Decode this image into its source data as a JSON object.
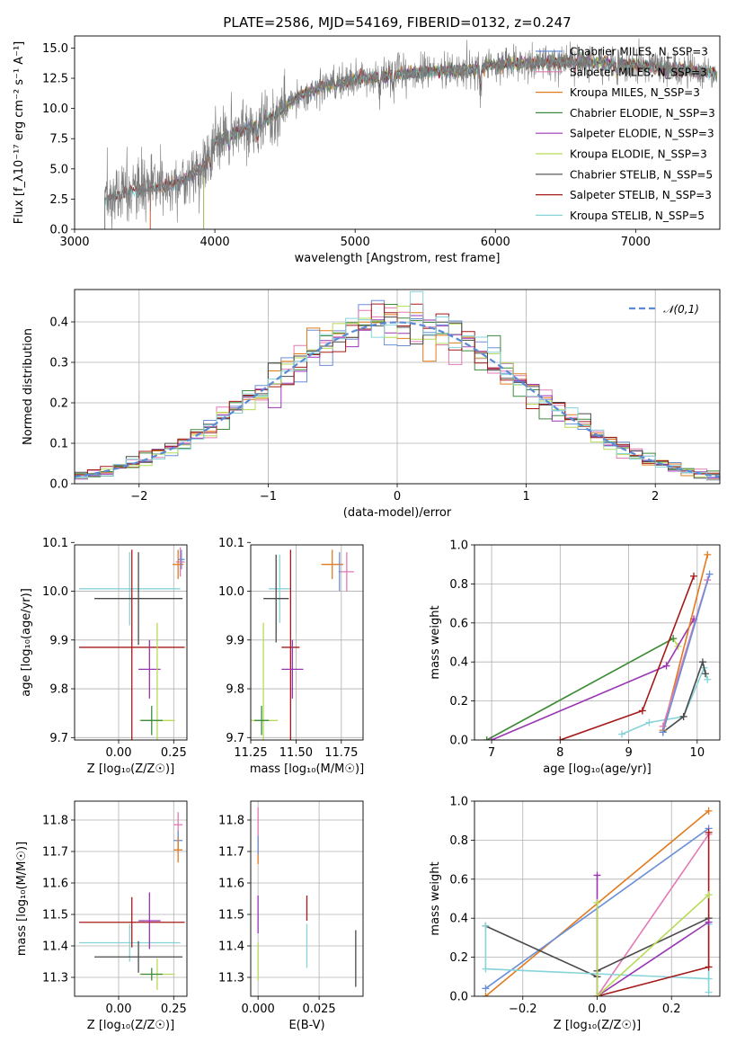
{
  "colors": {
    "Chabrier MILES": "#6b8fd6",
    "Salpeter MILES": "#e27ab5",
    "Kroupa MILES": "#e07b1f",
    "Chabrier ELODIE": "#3e8a3e",
    "Salpeter ELODIE": "#9a35b4",
    "Kroupa ELODIE": "#b7db55",
    "Chabrier STELIB": "#4a4a4a",
    "Salpeter STELIB": "#a51a1a",
    "Kroupa STELIB": "#86d3d8",
    "gauss": "#5b8ad6"
  },
  "chart_data": [
    {
      "id": "spectrum",
      "type": "line",
      "title": "PLATE=2586, MJD=54169, FIBERID=0132, z=0.247",
      "xlabel": "wavelength [Angstrom, rest frame]",
      "ylabel": "Flux [f_λ10⁻¹⁷ erg cm⁻² s⁻¹ A⁻¹]",
      "xlim": [
        3000,
        7600
      ],
      "ylim": [
        0,
        16
      ],
      "xticks": [
        3000,
        4000,
        5000,
        6000,
        7000
      ],
      "yticks": [
        0.0,
        2.5,
        5.0,
        7.5,
        10.0,
        12.5,
        15.0
      ],
      "legend_position": "top-right",
      "grid": false,
      "data_range": [
        3215,
        7580
      ],
      "continuum": [
        [
          3215,
          2.5
        ],
        [
          3300,
          2.9
        ],
        [
          3500,
          3.3
        ],
        [
          3700,
          3.7
        ],
        [
          3800,
          4.2
        ],
        [
          3900,
          5.0
        ],
        [
          4000,
          7.2
        ],
        [
          4200,
          8.2
        ],
        [
          4400,
          9.2
        ],
        [
          4600,
          11.0
        ],
        [
          4800,
          12.0
        ],
        [
          5000,
          12.4
        ],
        [
          5200,
          12.7
        ],
        [
          5500,
          13.0
        ],
        [
          5800,
          13.2
        ],
        [
          6000,
          13.6
        ],
        [
          6300,
          13.8
        ],
        [
          6600,
          13.9
        ],
        [
          7000,
          13.6
        ],
        [
          7300,
          13.2
        ],
        [
          7580,
          12.9
        ]
      ],
      "absorption_lines": [
        [
          3934,
          1.5
        ],
        [
          3969,
          1.4
        ],
        [
          4102,
          0.8
        ],
        [
          4304,
          1.3
        ],
        [
          4340,
          0.8
        ],
        [
          4861,
          0.7
        ],
        [
          5175,
          1.6
        ],
        [
          5270,
          1.0
        ],
        [
          5892,
          1.8
        ],
        [
          6563,
          0.6
        ],
        [
          6867,
          1.0
        ]
      ],
      "series": [
        {
          "name": "Chabrier MILES",
          "legend": "N_SSP=3",
          "start": 3540
        },
        {
          "name": "Salpeter MILES",
          "legend": "N_SSP=3",
          "start": 3540
        },
        {
          "name": "Kroupa MILES",
          "legend": "N_SSP=3",
          "start": 3540
        },
        {
          "name": "Chabrier ELODIE",
          "legend": "N_SSP=3",
          "start": 3920
        },
        {
          "name": "Salpeter ELODIE",
          "legend": "N_SSP=3",
          "start": 3920
        },
        {
          "name": "Kroupa ELODIE",
          "legend": "N_SSP=3",
          "start": 3920
        },
        {
          "name": "Chabrier STELIB",
          "legend": "N_SSP=5",
          "start": 3215
        },
        {
          "name": "Salpeter STELIB",
          "legend": "N_SSP=3",
          "start": 3215
        },
        {
          "name": "Kroupa STELIB",
          "legend": "N_SSP=5",
          "start": 3215
        }
      ]
    },
    {
      "id": "residuals",
      "type": "histogram",
      "xlabel": "(data-model)/error",
      "ylabel": "Normed distribution",
      "xlim": [
        -2.5,
        2.5
      ],
      "ylim": [
        0,
        0.48
      ],
      "xticks": [
        -2,
        -1,
        0,
        1,
        2
      ],
      "yticks": [
        0.0,
        0.1,
        0.2,
        0.3,
        0.4
      ],
      "grid": true,
      "bin_width": 0.1,
      "legend": {
        "label": "𝒩(0,1)",
        "position": "top-right"
      },
      "gaussian": {
        "mean": 0,
        "sigma": 1
      }
    },
    {
      "id": "age_vs_Z",
      "type": "errorbar",
      "xlabel": "Z [log₁₀(Z/Z☉)]",
      "ylabel": "age [log₁₀(age/yr)]",
      "xlim": [
        -0.2,
        0.31
      ],
      "ylim": [
        9.695,
        10.095
      ],
      "xticks": [
        0.0,
        0.25
      ],
      "xticklabels": [
        "0.00",
        "0.25"
      ],
      "yticks": [
        9.7,
        9.8,
        9.9,
        10.0,
        10.1
      ],
      "grid": true,
      "points": [
        {
          "s": "Kroupa STELIB",
          "x": 0.05,
          "xerr": 0.23,
          "y": 10.005,
          "yerr": 0.075
        },
        {
          "s": "Chabrier STELIB",
          "x": 0.09,
          "xerr": 0.2,
          "y": 9.985,
          "yerr": 0.095
        },
        {
          "s": "Salpeter STELIB",
          "x": 0.06,
          "xerr": 0.24,
          "y": 9.885,
          "yerr": 0.2
        },
        {
          "s": "Salpeter ELODIE",
          "x": 0.14,
          "xerr": 0.05,
          "y": 9.84,
          "yerr": 0.06
        },
        {
          "s": "Kroupa ELODIE",
          "x": 0.175,
          "xerr": 0.08,
          "y": 9.735,
          "yerr": 0.2
        },
        {
          "s": "Chabrier ELODIE",
          "x": 0.15,
          "xerr": 0.05,
          "y": 9.735,
          "yerr": 0.03
        },
        {
          "s": "Salpeter MILES",
          "x": 0.28,
          "xerr": 0.02,
          "y": 10.06,
          "yerr": 0.03
        },
        {
          "s": "Kroupa MILES",
          "x": 0.27,
          "xerr": 0.025,
          "y": 10.055,
          "yerr": 0.03
        },
        {
          "s": "Chabrier MILES",
          "x": 0.285,
          "xerr": 0.015,
          "y": 10.065,
          "yerr": 0.02
        }
      ]
    },
    {
      "id": "age_vs_mass",
      "type": "errorbar",
      "xlabel": "mass [log₁₀(M/M☉)]",
      "ylabel": "",
      "xlim": [
        11.25,
        11.87
      ],
      "ylim": [
        9.695,
        10.095
      ],
      "xticks": [
        11.25,
        11.5,
        11.75
      ],
      "xticklabels": [
        "11.25",
        "11.50",
        "11.75"
      ],
      "yticks": [
        9.7,
        9.8,
        9.9,
        10.0,
        10.1
      ],
      "grid": true,
      "points": [
        {
          "s": "Kroupa STELIB",
          "x": 11.41,
          "xerr": 0.06,
          "y": 10.005,
          "yerr": 0.07
        },
        {
          "s": "Chabrier STELIB",
          "x": 11.39,
          "xerr": 0.07,
          "y": 9.985,
          "yerr": 0.09
        },
        {
          "s": "Salpeter STELIB",
          "x": 11.47,
          "xerr": 0.05,
          "y": 9.885,
          "yerr": 0.2
        },
        {
          "s": "Salpeter ELODIE",
          "x": 11.48,
          "xerr": 0.06,
          "y": 9.84,
          "yerr": 0.06
        },
        {
          "s": "Kroupa ELODIE",
          "x": 11.32,
          "xerr": 0.08,
          "y": 9.735,
          "yerr": 0.2
        },
        {
          "s": "Chabrier ELODIE",
          "x": 11.31,
          "xerr": 0.04,
          "y": 9.735,
          "yerr": 0.03
        },
        {
          "s": "Kroupa MILES",
          "x": 11.7,
          "xerr": 0.06,
          "y": 10.055,
          "yerr": 0.03
        },
        {
          "s": "Salpeter MILES",
          "x": 11.78,
          "xerr": 0.04,
          "y": 10.04,
          "yerr": 0.04
        },
        {
          "s": "Chabrier MILES",
          "x": 11.74,
          "xerr": 0.005,
          "y": 10.04,
          "yerr": 0.04
        }
      ]
    },
    {
      "id": "weight_vs_age",
      "type": "line",
      "xlabel": "age [log₁₀(age/yr)]",
      "ylabel": "mass weight",
      "xlim": [
        6.75,
        10.33
      ],
      "ylim": [
        0,
        1.0
      ],
      "xticks": [
        7,
        8,
        9,
        10
      ],
      "yticks": [
        0.0,
        0.2,
        0.4,
        0.6,
        0.8,
        1.0
      ],
      "grid": true,
      "series": [
        {
          "s": "Kroupa ELODIE",
          "points": [
            [
              6.93,
              0.0
            ],
            [
              9.65,
              0.52
            ],
            [
              9.72,
              0.48
            ]
          ]
        },
        {
          "s": "Chabrier ELODIE",
          "points": [
            [
              6.93,
              0.0
            ],
            [
              9.65,
              0.52
            ]
          ]
        },
        {
          "s": "Salpeter ELODIE",
          "points": [
            [
              7.0,
              0.0
            ],
            [
              9.55,
              0.38
            ],
            [
              9.95,
              0.62
            ]
          ]
        },
        {
          "s": "Salpeter STELIB",
          "points": [
            [
              8.0,
              0.0
            ],
            [
              9.2,
              0.15
            ],
            [
              9.95,
              0.84
            ]
          ]
        },
        {
          "s": "Kroupa STELIB",
          "points": [
            [
              8.9,
              0.03
            ],
            [
              9.3,
              0.09
            ],
            [
              9.8,
              0.12
            ],
            [
              10.1,
              0.37
            ],
            [
              10.15,
              0.31
            ]
          ]
        },
        {
          "s": "Chabrier STELIB",
          "points": [
            [
              9.5,
              0.04
            ],
            [
              9.8,
              0.12
            ],
            [
              10.08,
              0.4
            ],
            [
              10.12,
              0.34
            ]
          ]
        },
        {
          "s": "Kroupa MILES",
          "points": [
            [
              9.5,
              0.05
            ],
            [
              10.15,
              0.95
            ]
          ]
        },
        {
          "s": "Salpeter MILES",
          "points": [
            [
              9.5,
              0.07
            ],
            [
              10.15,
              0.82
            ]
          ]
        },
        {
          "s": "Chabrier MILES",
          "points": [
            [
              9.5,
              0.04
            ],
            [
              10.18,
              0.85
            ]
          ]
        }
      ]
    },
    {
      "id": "mass_vs_Z",
      "type": "errorbar",
      "xlabel": "Z [log₁₀(Z/Z☉)]",
      "ylabel": "mass [log₁₀(M/M☉)]",
      "xlim": [
        -0.2,
        0.31
      ],
      "ylim": [
        11.24,
        11.86
      ],
      "xticks": [
        0.0,
        0.25
      ],
      "xticklabels": [
        "0.00",
        "0.25"
      ],
      "yticks": [
        11.3,
        11.4,
        11.5,
        11.6,
        11.7,
        11.8
      ],
      "grid": true,
      "points": [
        {
          "s": "Kroupa STELIB",
          "x": 0.05,
          "xerr": 0.23,
          "y": 11.41,
          "yerr": 0.06
        },
        {
          "s": "Chabrier STELIB",
          "x": 0.09,
          "xerr": 0.2,
          "y": 11.365,
          "yerr": 0.05
        },
        {
          "s": "Salpeter STELIB",
          "x": 0.06,
          "xerr": 0.24,
          "y": 11.475,
          "yerr": 0.08
        },
        {
          "s": "Salpeter ELODIE",
          "x": 0.14,
          "xerr": 0.05,
          "y": 11.48,
          "yerr": 0.09
        },
        {
          "s": "Kroupa ELODIE",
          "x": 0.175,
          "xerr": 0.08,
          "y": 11.31,
          "yerr": 0.05
        },
        {
          "s": "Chabrier ELODIE",
          "x": 0.15,
          "xerr": 0.05,
          "y": 11.31,
          "yerr": 0.02
        },
        {
          "s": "Salpeter MILES",
          "x": 0.27,
          "xerr": 0.02,
          "y": 11.785,
          "yerr": 0.04
        },
        {
          "s": "Chabrier MILES",
          "x": 0.27,
          "xerr": 0.02,
          "y": 11.735,
          "yerr": 0.03
        },
        {
          "s": "Kroupa MILES",
          "x": 0.27,
          "xerr": 0.02,
          "y": 11.705,
          "yerr": 0.04
        }
      ]
    },
    {
      "id": "mass_vs_EBV",
      "type": "errorbar",
      "xlabel": "E(B-V)",
      "ylabel": "",
      "xlim": [
        -0.003,
        0.043
      ],
      "ylim": [
        11.24,
        11.86
      ],
      "xticks": [
        0.0,
        0.025
      ],
      "xticklabels": [
        "0.000",
        "0.025"
      ],
      "yticks": [
        11.3,
        11.4,
        11.5,
        11.6,
        11.7,
        11.8
      ],
      "grid": true,
      "points": [
        {
          "s": "Chabrier STELIB",
          "x": 0.04,
          "xerr": 0,
          "y": 11.36,
          "yerr": 0.09
        },
        {
          "s": "Salpeter STELIB",
          "x": 0.02,
          "xerr": 0,
          "y": 11.52,
          "yerr": 0.04
        },
        {
          "s": "Kroupa STELIB",
          "x": 0.02,
          "xerr": 0,
          "y": 11.4,
          "yerr": 0.07
        },
        {
          "s": "Salpeter ELODIE",
          "x": 0.0,
          "xerr": 0,
          "y": 11.5,
          "yerr": 0.06
        },
        {
          "s": "Kroupa ELODIE",
          "x": 0.0,
          "xerr": 0,
          "y": 11.35,
          "yerr": 0.06
        },
        {
          "s": "Salpeter MILES",
          "x": 0.0,
          "xerr": 0,
          "y": 11.79,
          "yerr": 0.05
        },
        {
          "s": "Kroupa MILES",
          "x": 0.0,
          "xerr": 0,
          "y": 11.7,
          "yerr": 0.04
        },
        {
          "s": "Chabrier MILES",
          "x": 0.0,
          "xerr": 0,
          "y": 11.72,
          "yerr": 0.03
        }
      ]
    },
    {
      "id": "weight_vs_Z",
      "type": "line",
      "xlabel": "Z [log₁₀(Z/Z☉)]",
      "ylabel": "mass weight",
      "xlim": [
        -0.33,
        0.33
      ],
      "ylim": [
        0,
        1.0
      ],
      "xticks": [
        -0.2,
        0.0,
        0.2
      ],
      "xticklabels": [
        "−0.2",
        "0.0",
        "0.2"
      ],
      "yticks": [
        0.0,
        0.2,
        0.4,
        0.6,
        0.8,
        1.0
      ],
      "grid": true,
      "series": [
        {
          "s": "Kroupa MILES",
          "points": [
            [
              -0.3,
              0.0
            ],
            [
              0.3,
              0.95
            ]
          ]
        },
        {
          "s": "Chabrier MILES",
          "points": [
            [
              -0.3,
              0.04
            ],
            [
              0.3,
              0.86
            ]
          ]
        },
        {
          "s": "Salpeter MILES",
          "points": [
            [
              0.0,
              0.0
            ],
            [
              0.3,
              0.83
            ]
          ]
        },
        {
          "s": "Chabrier STELIB",
          "points": [
            [
              -0.3,
              0.36
            ],
            [
              0.0,
              0.1
            ],
            [
              0.0,
              0.13
            ],
            [
              0.3,
              0.4
            ]
          ]
        },
        {
          "s": "Kroupa STELIB",
          "points": [
            [
              -0.3,
              0.36
            ],
            [
              -0.3,
              0.14
            ],
            [
              0.3,
              0.09
            ],
            [
              0.3,
              0.37
            ],
            [
              0.3,
              0.02
            ]
          ]
        },
        {
          "s": "Salpeter STELIB",
          "points": [
            [
              0.0,
              0.0
            ],
            [
              0.3,
              0.15
            ],
            [
              0.3,
              0.84
            ]
          ]
        },
        {
          "s": "Salpeter ELODIE",
          "points": [
            [
              0.0,
              0.62
            ],
            [
              0.0,
              0.0
            ],
            [
              0.3,
              0.38
            ]
          ]
        },
        {
          "s": "Kroupa ELODIE",
          "points": [
            [
              0.0,
              0.48
            ],
            [
              0.0,
              0.0
            ],
            [
              0.3,
              0.52
            ]
          ]
        }
      ]
    }
  ]
}
